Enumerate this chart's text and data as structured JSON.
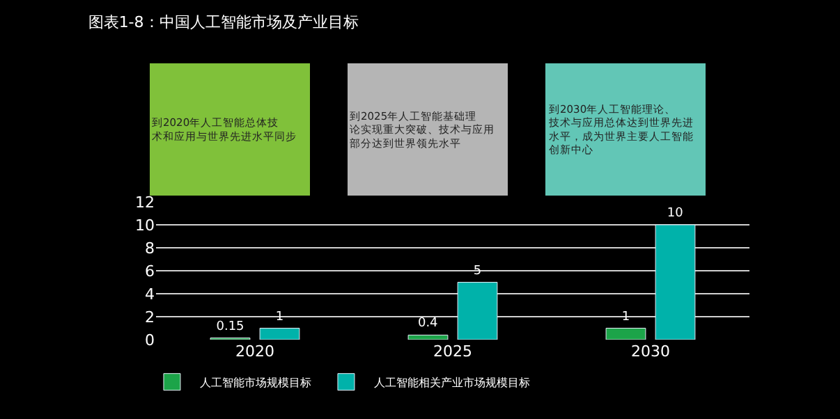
{
  "chart_data": {
    "type": "bar",
    "title": "图表1-8：中国人工智能市场及产业目标",
    "categories": [
      "2020",
      "2025",
      "2030"
    ],
    "series": [
      {
        "name": "人工智能市场规模目标",
        "color": "#1ca449",
        "values": [
          0.15,
          0.4,
          1
        ]
      },
      {
        "name": "人工智能相关产业市场规模目标",
        "color": "#00b2aa",
        "values": [
          1,
          5,
          10
        ]
      }
    ],
    "ylim": [
      0,
      12
    ],
    "yticks": [
      0,
      2,
      4,
      6,
      8,
      10,
      12
    ],
    "grid": "y",
    "legend": "bottom",
    "data_labels": true,
    "annotations": [
      "到2020年人工智能总体技术和应用与世界先进水平同步",
      "到2025年人工智能基础理论实现重大突破、技术与应用部分达到世界领先水平",
      "到2030年人工智能理论、技术与应用总体达到世界先进水平，成为世界主要人工智能创新中心"
    ]
  }
}
